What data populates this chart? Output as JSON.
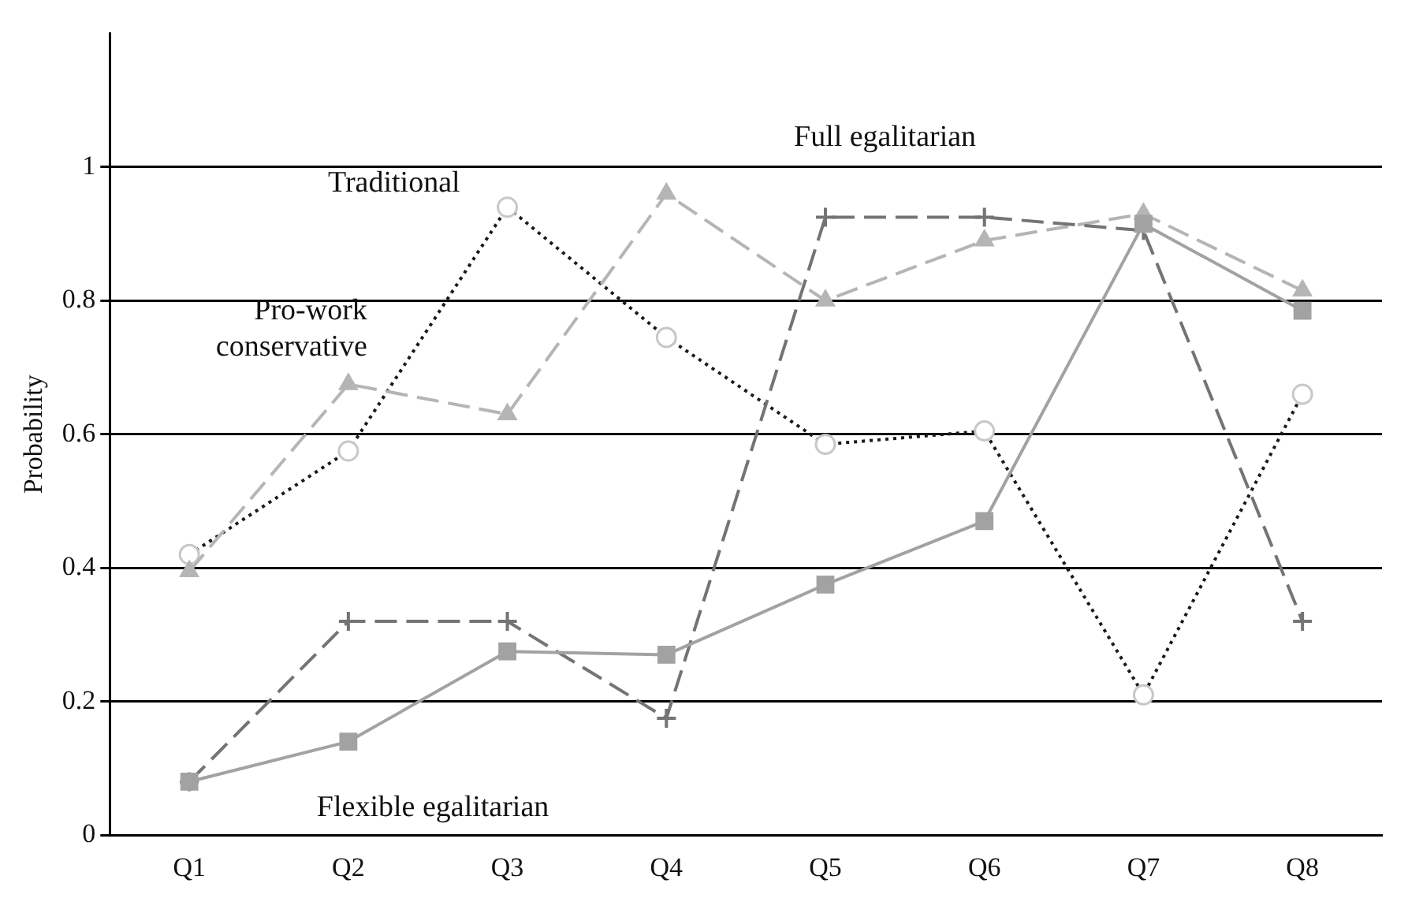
{
  "chart_data": {
    "type": "line",
    "ylabel": "Probability",
    "categories": [
      "Q1",
      "Q2",
      "Q3",
      "Q4",
      "Q5",
      "Q6",
      "Q7",
      "Q8"
    ],
    "series": [
      {
        "name": "Traditional",
        "color": "#1a1a1a",
        "line_style": "dotted",
        "marker": "circle",
        "values": [
          0.42,
          0.575,
          0.94,
          0.745,
          0.585,
          0.605,
          0.21,
          0.66
        ]
      },
      {
        "name": "Pro-work\nconservative",
        "color": "#b5b5b5",
        "line_style": "dashed",
        "marker": "triangle",
        "values": [
          0.395,
          0.675,
          0.63,
          0.96,
          0.8,
          0.89,
          0.93,
          0.815
        ]
      },
      {
        "name": "Full egalitarian",
        "color": "#747474",
        "line_style": "dashed",
        "marker": "cross",
        "values": [
          0.08,
          0.32,
          0.32,
          0.175,
          0.925,
          0.925,
          0.905,
          0.32
        ]
      },
      {
        "name": "Flexible egalitarian",
        "color": "#a2a2a2",
        "line_style": "solid",
        "marker": "square",
        "values": [
          0.08,
          0.14,
          0.275,
          0.27,
          0.375,
          0.47,
          0.915,
          0.785
        ]
      }
    ],
    "ylim": [
      0,
      1.2
    ],
    "yticks": [
      0,
      0.2,
      0.4,
      0.6,
      0.8,
      1
    ],
    "grid": "y",
    "legend": false
  }
}
